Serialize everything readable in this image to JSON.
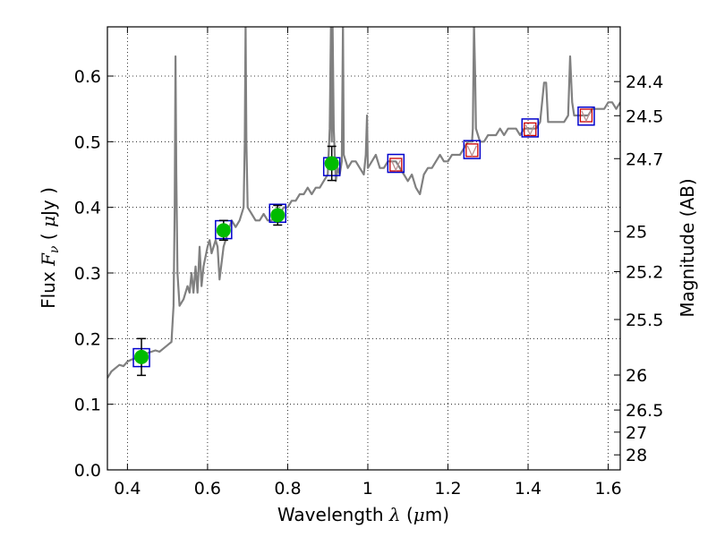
{
  "chart_data": {
    "type": "line",
    "xlabel": {
      "prefix": "Wavelength  ",
      "symbol": "λ",
      "suffix": " (",
      "unit_sym": "μ",
      "unit": "m)"
    },
    "ylabel": {
      "prefix": "Flux  ",
      "symbol": "F",
      "sub": "ν",
      "mid": "  ( ",
      "unit_sym": "μ",
      "unit": "Jy )"
    },
    "y2label": "Magnitude (AB)",
    "xlim": [
      0.35,
      1.63
    ],
    "ylim": [
      0.0,
      0.675
    ],
    "grid": true,
    "x_ticks": [
      {
        "v": 0.4,
        "label": "0.4"
      },
      {
        "v": 0.6,
        "label": "0.6"
      },
      {
        "v": 0.8,
        "label": "0.8"
      },
      {
        "v": 1.0,
        "label": "1"
      },
      {
        "v": 1.2,
        "label": "1.2"
      },
      {
        "v": 1.4,
        "label": "1.4"
      },
      {
        "v": 1.6,
        "label": "1.6"
      }
    ],
    "y_ticks": [
      {
        "v": 0.0,
        "label": "0.0"
      },
      {
        "v": 0.1,
        "label": "0.1"
      },
      {
        "v": 0.2,
        "label": "0.2"
      },
      {
        "v": 0.3,
        "label": "0.3"
      },
      {
        "v": 0.4,
        "label": "0.4"
      },
      {
        "v": 0.5,
        "label": "0.5"
      },
      {
        "v": 0.6,
        "label": "0.6"
      }
    ],
    "y2_ticks": [
      {
        "flux": 0.5916,
        "label": "24.4"
      },
      {
        "flux": 0.5396,
        "label": "24.5"
      },
      {
        "flux": 0.4742,
        "label": "24.7"
      },
      {
        "flux": 0.3631,
        "label": "25"
      },
      {
        "flux": 0.302,
        "label": "25.2"
      },
      {
        "flux": 0.2291,
        "label": "25.5"
      },
      {
        "flux": 0.1445,
        "label": "26"
      },
      {
        "flux": 0.0912,
        "label": "26.5"
      },
      {
        "flux": 0.0575,
        "label": "27"
      },
      {
        "flux": 0.0229,
        "label": "28"
      }
    ],
    "series": [
      {
        "role": "model-spectrum",
        "color": "#808080",
        "x": [
          0.35,
          0.36,
          0.37,
          0.38,
          0.39,
          0.4,
          0.41,
          0.42,
          0.43,
          0.44,
          0.45,
          0.46,
          0.47,
          0.48,
          0.49,
          0.5,
          0.51,
          0.515,
          0.518,
          0.52,
          0.522,
          0.525,
          0.53,
          0.54,
          0.55,
          0.555,
          0.56,
          0.565,
          0.57,
          0.575,
          0.58,
          0.585,
          0.59,
          0.6,
          0.605,
          0.61,
          0.62,
          0.625,
          0.63,
          0.64,
          0.65,
          0.66,
          0.67,
          0.68,
          0.69,
          0.693,
          0.695,
          0.697,
          0.7,
          0.71,
          0.72,
          0.73,
          0.74,
          0.75,
          0.76,
          0.77,
          0.78,
          0.79,
          0.8,
          0.81,
          0.82,
          0.83,
          0.84,
          0.85,
          0.86,
          0.87,
          0.88,
          0.89,
          0.9,
          0.905,
          0.908,
          0.91,
          0.912,
          0.915,
          0.92,
          0.925,
          0.93,
          0.935,
          0.938,
          0.94,
          0.945,
          0.95,
          0.96,
          0.97,
          0.98,
          0.99,
          0.995,
          0.998,
          1.0,
          1.01,
          1.02,
          1.03,
          1.04,
          1.05,
          1.06,
          1.07,
          1.08,
          1.09,
          1.1,
          1.11,
          1.12,
          1.13,
          1.14,
          1.15,
          1.16,
          1.17,
          1.18,
          1.19,
          1.2,
          1.21,
          1.22,
          1.23,
          1.24,
          1.25,
          1.26,
          1.262,
          1.265,
          1.268,
          1.27,
          1.28,
          1.29,
          1.3,
          1.31,
          1.32,
          1.33,
          1.34,
          1.35,
          1.36,
          1.37,
          1.38,
          1.39,
          1.4,
          1.41,
          1.42,
          1.43,
          1.44,
          1.445,
          1.45,
          1.46,
          1.47,
          1.48,
          1.49,
          1.5,
          1.505,
          1.51,
          1.515,
          1.52,
          1.53,
          1.54,
          1.55,
          1.56,
          1.57,
          1.58,
          1.59,
          1.6,
          1.61,
          1.62,
          1.63
        ],
        "y": [
          0.14,
          0.15,
          0.155,
          0.16,
          0.158,
          0.165,
          0.168,
          0.17,
          0.172,
          0.175,
          0.178,
          0.18,
          0.182,
          0.18,
          0.185,
          0.19,
          0.195,
          0.25,
          0.4,
          0.63,
          0.45,
          0.3,
          0.25,
          0.26,
          0.28,
          0.27,
          0.3,
          0.27,
          0.31,
          0.27,
          0.34,
          0.28,
          0.31,
          0.34,
          0.35,
          0.33,
          0.35,
          0.34,
          0.29,
          0.34,
          0.36,
          0.38,
          0.37,
          0.38,
          0.4,
          0.5,
          0.68,
          0.5,
          0.4,
          0.39,
          0.38,
          0.38,
          0.39,
          0.38,
          0.38,
          0.39,
          0.39,
          0.4,
          0.4,
          0.41,
          0.41,
          0.42,
          0.42,
          0.43,
          0.42,
          0.43,
          0.43,
          0.44,
          0.45,
          0.52,
          0.68,
          0.5,
          0.68,
          0.52,
          0.44,
          0.46,
          0.45,
          0.47,
          0.68,
          0.48,
          0.47,
          0.46,
          0.47,
          0.47,
          0.46,
          0.45,
          0.48,
          0.54,
          0.46,
          0.47,
          0.48,
          0.46,
          0.46,
          0.47,
          0.47,
          0.47,
          0.46,
          0.45,
          0.44,
          0.45,
          0.43,
          0.42,
          0.45,
          0.46,
          0.46,
          0.47,
          0.48,
          0.47,
          0.47,
          0.48,
          0.48,
          0.48,
          0.49,
          0.5,
          0.5,
          0.52,
          0.68,
          0.6,
          0.52,
          0.5,
          0.5,
          0.51,
          0.51,
          0.51,
          0.52,
          0.51,
          0.52,
          0.52,
          0.52,
          0.51,
          0.52,
          0.52,
          0.52,
          0.52,
          0.53,
          0.59,
          0.59,
          0.53,
          0.53,
          0.53,
          0.53,
          0.53,
          0.54,
          0.63,
          0.56,
          0.54,
          0.54,
          0.54,
          0.54,
          0.54,
          0.55,
          0.55,
          0.55,
          0.55,
          0.56,
          0.56,
          0.55,
          0.56
        ]
      }
    ],
    "points": [
      {
        "x": 0.435,
        "y": 0.172,
        "err": 0.028,
        "type": "detection",
        "model_y": 0.171
      },
      {
        "x": 0.64,
        "y": 0.365,
        "err": 0.015,
        "type": "detection",
        "model_y": 0.366
      },
      {
        "x": 0.775,
        "y": 0.388,
        "err": 0.015,
        "type": "detection",
        "model_y": 0.391
      },
      {
        "x": 0.91,
        "y": 0.467,
        "err": 0.026,
        "type": "detection",
        "model_y": 0.462
      },
      {
        "x": 1.07,
        "y": 0.465,
        "err": 0,
        "type": "upper-limit",
        "model_y": 0.467
      },
      {
        "x": 1.26,
        "y": 0.487,
        "err": 0,
        "type": "upper-limit",
        "model_y": 0.488
      },
      {
        "x": 1.405,
        "y": 0.519,
        "err": 0,
        "type": "upper-limit",
        "model_y": 0.521
      },
      {
        "x": 1.545,
        "y": 0.54,
        "err": 0,
        "type": "upper-limit",
        "model_y": 0.539
      }
    ],
    "colors": {
      "detection": "#00bb00",
      "model_box": "#0000cc",
      "upper_limit_box": "#cc0000",
      "upper_limit_marker": "#b89090",
      "errorbar": "#000000"
    }
  }
}
